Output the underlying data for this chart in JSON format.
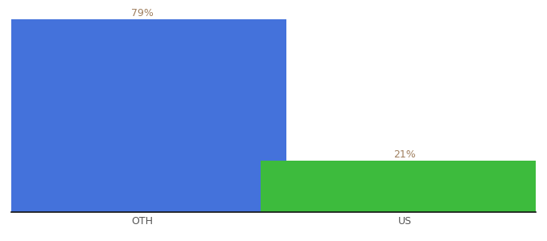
{
  "categories": [
    "OTH",
    "US"
  ],
  "values": [
    79,
    21
  ],
  "bar_colors": [
    "#4472db",
    "#3dbb3d"
  ],
  "label_texts": [
    "79%",
    "21%"
  ],
  "label_color": "#a08060",
  "ylim": [
    0,
    84
  ],
  "background_color": "#ffffff",
  "bar_width": 0.55,
  "label_fontsize": 9,
  "tick_fontsize": 9,
  "x_positions": [
    0.25,
    0.75
  ]
}
